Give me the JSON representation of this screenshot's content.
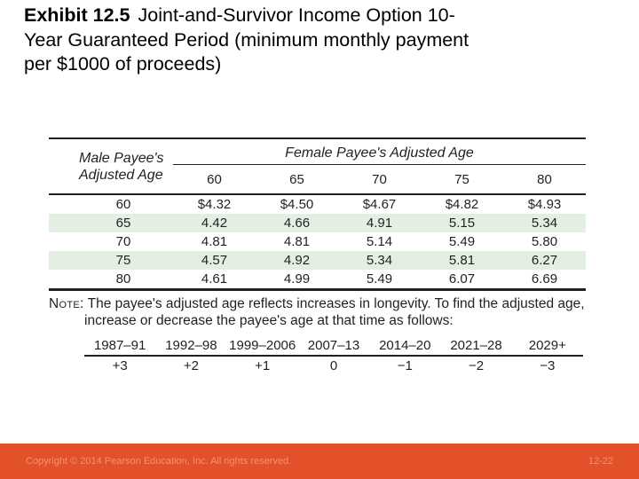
{
  "colors": {
    "accent-bar": "#e2512a",
    "footer-text": "#f2946c",
    "row-shade": "#e4efe3",
    "table-ink": "#231f20"
  },
  "title": {
    "exhibit": "Exhibit 12.5",
    "line1": "Joint-and-Survivor Income Option 10-",
    "line2": "Year Guaranteed Period (minimum monthly payment",
    "line3": "per $1000 of proceeds)"
  },
  "table": {
    "row_header": "Male Payee's Adjusted Age",
    "col_group_header": "Female Payee's Adjusted Age",
    "col_headers": [
      "60",
      "65",
      "70",
      "75",
      "80"
    ],
    "rows": [
      {
        "age": "60",
        "values": [
          "$4.32",
          "$4.50",
          "$4.67",
          "$4.82",
          "$4.93"
        ]
      },
      {
        "age": "65",
        "values": [
          "4.42",
          "4.66",
          "4.91",
          "5.15",
          "5.34"
        ]
      },
      {
        "age": "70",
        "values": [
          "4.81",
          "4.81",
          "5.14",
          "5.49",
          "5.80"
        ]
      },
      {
        "age": "75",
        "values": [
          "4.57",
          "4.92",
          "5.34",
          "5.81",
          "6.27"
        ]
      },
      {
        "age": "80",
        "values": [
          "4.61",
          "4.99",
          "5.49",
          "6.07",
          "6.69"
        ]
      }
    ]
  },
  "note": {
    "label": "Note:",
    "line1": "The payee's adjusted age reflects increases in longevity. To find the adjusted age,",
    "line2": "increase or decrease the payee's age at that time as follows:"
  },
  "adjustments": {
    "columns": [
      {
        "years": "1987–91",
        "value": "+3"
      },
      {
        "years": "1992–98",
        "value": "+2"
      },
      {
        "years": "1999–2006",
        "value": "+1"
      },
      {
        "years": "2007–13",
        "value": "0"
      },
      {
        "years": "2014–20",
        "value": "−1"
      },
      {
        "years": "2021–28",
        "value": "−2"
      },
      {
        "years": "2029+",
        "value": "−3"
      }
    ]
  },
  "footer": {
    "copyright": "Copyright © 2014 Pearson Education, Inc. All rights reserved.",
    "slide_number": "12-22"
  }
}
